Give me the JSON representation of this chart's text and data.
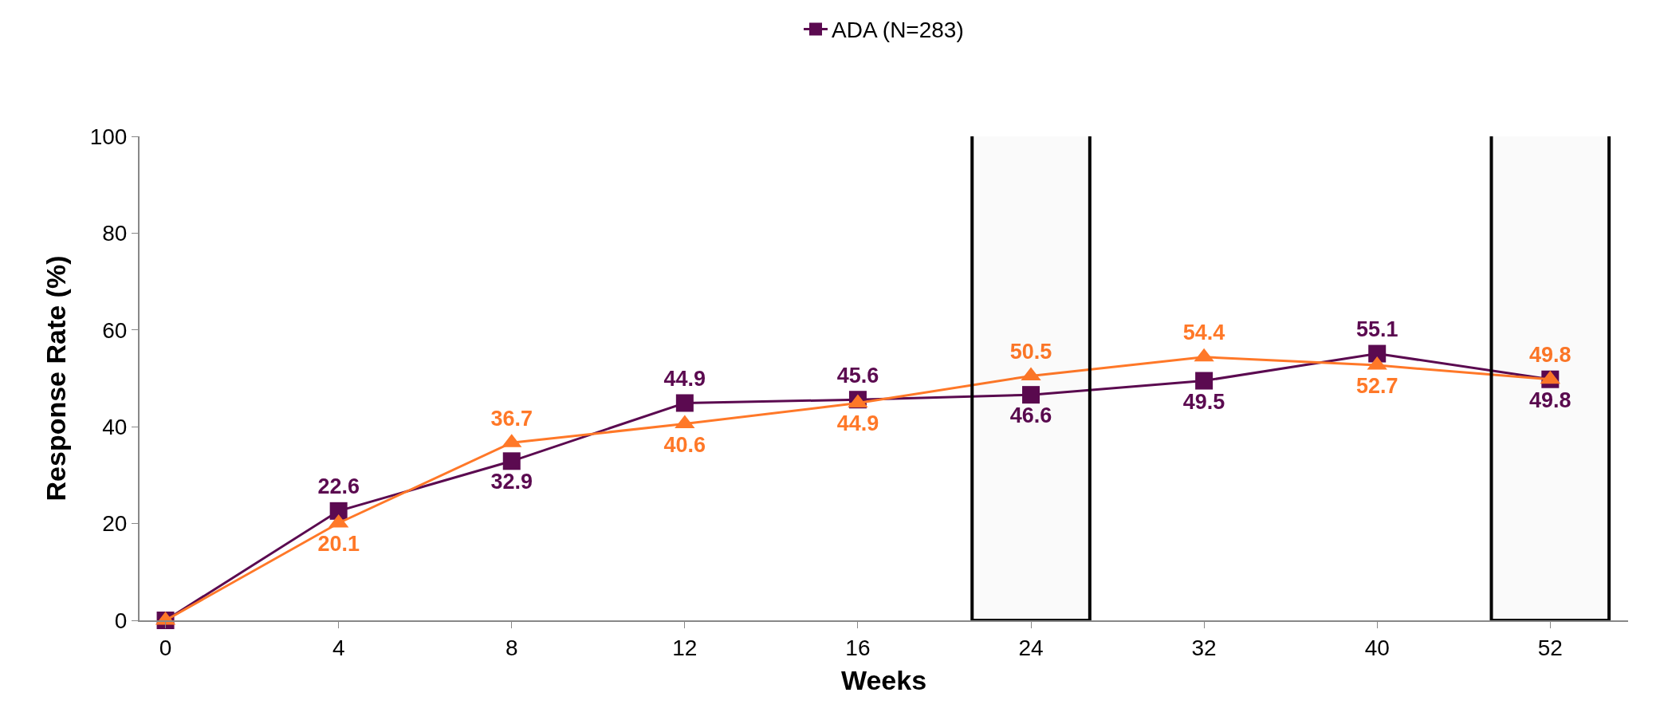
{
  "chart_data": {
    "type": "line",
    "xlabel": "Weeks",
    "ylabel": "Response Rate (%)",
    "categories": [
      "0",
      "4",
      "8",
      "12",
      "16",
      "24",
      "32",
      "40",
      "52"
    ],
    "series": [
      {
        "name": "ADA (N=283)",
        "color": "#5b0a50",
        "marker": "square",
        "values": [
          0,
          22.6,
          32.9,
          44.9,
          45.6,
          46.6,
          49.5,
          55.1,
          49.8
        ],
        "value_labels": [
          null,
          "22.6",
          "32.9",
          "44.9",
          "45.6",
          "46.6",
          "49.5",
          "55.1",
          "49.8"
        ]
      },
      {
        "color": "#ff7828",
        "marker": "triangle",
        "values": [
          0,
          20.1,
          36.7,
          40.6,
          44.9,
          50.5,
          54.4,
          52.7,
          49.8
        ],
        "value_labels": [
          null,
          "20.1",
          "36.7",
          "40.6",
          "44.9",
          "50.5",
          "54.4",
          "52.7",
          "49.8"
        ]
      }
    ],
    "ylim": [
      0,
      100
    ],
    "yticks": [
      0,
      20,
      40,
      60,
      80,
      100
    ],
    "legend": "top",
    "bands": [
      {
        "axis": "x",
        "from": "24",
        "to": "24",
        "color": "#000000"
      },
      {
        "axis": "x",
        "from": "52",
        "to": "52",
        "color": "#000000"
      }
    ]
  }
}
